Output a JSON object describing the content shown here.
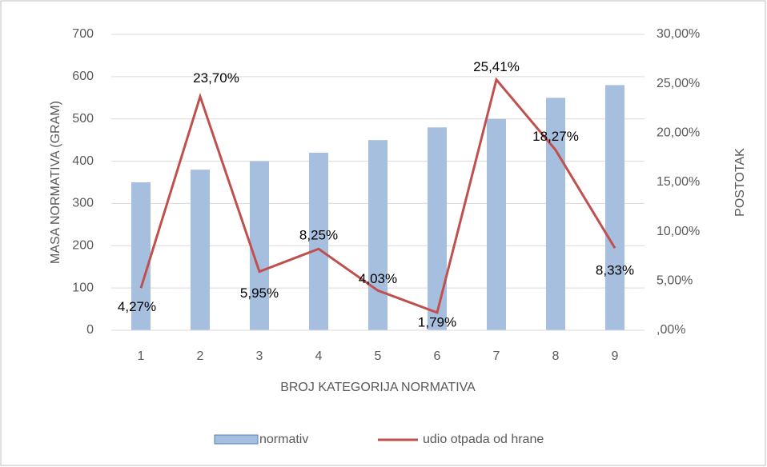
{
  "chart_data": {
    "type": "bar",
    "categories": [
      "1",
      "2",
      "3",
      "4",
      "5",
      "6",
      "7",
      "8",
      "9"
    ],
    "series": [
      {
        "name": "normativ",
        "type": "bar",
        "color": "#a7bfde",
        "values": [
          350,
          380,
          400,
          420,
          450,
          480,
          500,
          550,
          580
        ]
      },
      {
        "name": "udio otpada od hrane",
        "type": "line",
        "axis": "y2",
        "color": "#c0504d",
        "values": [
          4.27,
          23.7,
          5.95,
          8.25,
          4.03,
          1.79,
          25.41,
          18.27,
          8.33
        ],
        "value_labels": [
          "4,27%",
          "23,70%",
          "5,95%",
          "8,25%",
          "4,03%",
          "1,79%",
          "25,41%",
          "18,27%",
          "8,33%"
        ]
      }
    ],
    "xlabel": "BROJ KATEGORIJA NORMATIVA",
    "ylabel": "MASA NORMATIVA (GRAM)",
    "y2label": "POSTOTAK",
    "ylim": [
      0,
      700
    ],
    "yticks": [
      0,
      100,
      200,
      300,
      400,
      500,
      600,
      700
    ],
    "y2lim": [
      0,
      30
    ],
    "y2ticks": [
      {
        "value": 0,
        "label": ",00%"
      },
      {
        "value": 5,
        "label": "5,00%"
      },
      {
        "value": 10,
        "label": "10,00%"
      },
      {
        "value": 15,
        "label": "15,00%"
      },
      {
        "value": 20,
        "label": "20,00%"
      },
      {
        "value": 25,
        "label": "25,00%"
      },
      {
        "value": 30,
        "label": "30,00%"
      }
    ],
    "grid": true,
    "legend": "bottom"
  }
}
